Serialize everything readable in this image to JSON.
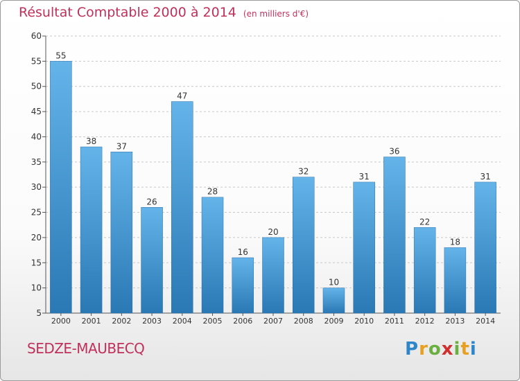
{
  "header": {
    "title": "Résultat Comptable 2000 à 2014",
    "subtitle": "(en milliers d'€)"
  },
  "footer": {
    "commune": "SEDZE-MAUBECQ",
    "logo": "Proxiti"
  },
  "colors": {
    "title": "#c0305a",
    "bar_top": "#64b4ea",
    "bar_bottom": "#2a78b4",
    "grid": "#c8c8c8",
    "axis_text": "#333333"
  },
  "chart_data": {
    "type": "bar",
    "title": "Résultat Comptable 2000 à 2014",
    "unit": "(en milliers d'€)",
    "xlabel": "",
    "ylabel": "",
    "ylim": [
      5,
      60
    ],
    "yticks": [
      5,
      10,
      15,
      20,
      25,
      30,
      35,
      40,
      45,
      50,
      55,
      60
    ],
    "grid": true,
    "categories": [
      "2000",
      "2001",
      "2002",
      "2003",
      "2004",
      "2005",
      "2006",
      "2007",
      "2008",
      "2009",
      "2010",
      "2011",
      "2012",
      "2013",
      "2014"
    ],
    "values": [
      55,
      38,
      37,
      26,
      47,
      28,
      16,
      20,
      32,
      10,
      31,
      36,
      22,
      18,
      31
    ],
    "data_labels": [
      "55",
      "38",
      "37",
      "26",
      "47",
      "28",
      "16",
      "20",
      "32",
      "10",
      "31",
      "36",
      "22",
      "18",
      "31"
    ]
  }
}
